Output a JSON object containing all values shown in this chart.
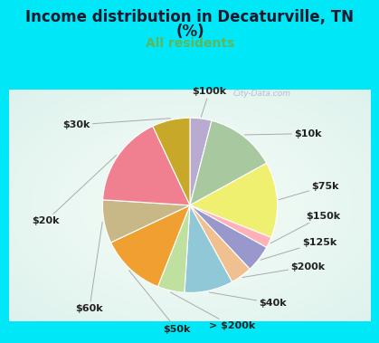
{
  "title_line1": "Income distribution in Decaturville, TN",
  "title_line2": "(%)",
  "subtitle": "All residents",
  "title_color": "#1a1a2e",
  "subtitle_color": "#5cb85c",
  "bg_color": "#00e8f8",
  "chart_bg_color": "#e0f2ee",
  "ordered_labels": [
    "$100k",
    "$10k",
    "$75k",
    "$150k",
    "$125k",
    "$200k",
    "$40k",
    "> $200k",
    "$50k",
    "$60k",
    "$20k",
    "$30k"
  ],
  "ordered_values": [
    4,
    13,
    14,
    2,
    5,
    4,
    9,
    5,
    12,
    8,
    17,
    7
  ],
  "ordered_colors": [
    "#b8aad0",
    "#a8c8a0",
    "#f0f070",
    "#ffb0b8",
    "#9898cc",
    "#f0c090",
    "#90c8d8",
    "#c0e0a0",
    "#f0a030",
    "#c8b888",
    "#f08090",
    "#c8a828"
  ],
  "label_fontsize": 8.0,
  "title_fontsize": 12,
  "subtitle_fontsize": 10,
  "label_color": "#222222",
  "watermark": "City-Data.com"
}
